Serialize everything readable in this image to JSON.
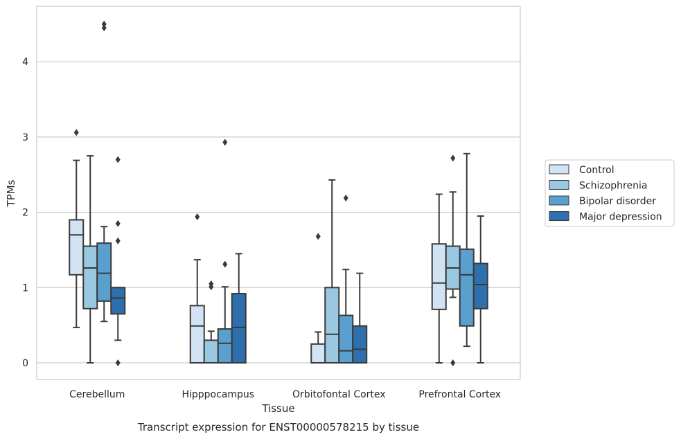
{
  "chart_data": {
    "type": "box",
    "title": "",
    "caption": "Transcript expression for ENST00000578215 by tissue",
    "xlabel": "Tissue",
    "ylabel": "TPMs",
    "ylim": [
      -0.22,
      4.65
    ],
    "yticks": [
      0,
      1,
      2,
      3,
      4
    ],
    "grid": true,
    "legend_position": "right",
    "categories": [
      "Cerebellum",
      "Hipppocampus",
      "Orbitofontal Cortex",
      "Prefrontal Cortex"
    ],
    "series": [
      {
        "name": "Control",
        "color": "#d2e3f3",
        "boxes": [
          {
            "whisker_low": 0.47,
            "q1": 1.17,
            "median": 1.7,
            "q3": 1.9,
            "whisker_high": 2.69,
            "outliers": [
              3.06
            ]
          },
          {
            "whisker_low": 0.0,
            "q1": 0.0,
            "median": 0.49,
            "q3": 0.76,
            "whisker_high": 1.37,
            "outliers": [
              1.94
            ]
          },
          {
            "whisker_low": 0.0,
            "q1": 0.0,
            "median": 0.0,
            "q3": 0.25,
            "whisker_high": 0.41,
            "outliers": [
              1.68
            ]
          },
          {
            "whisker_low": 0.0,
            "q1": 0.71,
            "median": 1.06,
            "q3": 1.58,
            "whisker_high": 2.24,
            "outliers": []
          }
        ]
      },
      {
        "name": "Schizophrenia",
        "color": "#9ac8e0",
        "boxes": [
          {
            "whisker_low": 0.0,
            "q1": 0.72,
            "median": 1.26,
            "q3": 1.55,
            "whisker_high": 2.75,
            "outliers": []
          },
          {
            "whisker_low": 0.0,
            "q1": 0.0,
            "median": 0.0,
            "q3": 0.3,
            "whisker_high": 0.42,
            "outliers": [
              1.01,
              1.05
            ]
          },
          {
            "whisker_low": 0.0,
            "q1": 0.0,
            "median": 0.38,
            "q3": 1.0,
            "whisker_high": 2.43,
            "outliers": []
          },
          {
            "whisker_low": 0.87,
            "q1": 0.98,
            "median": 1.26,
            "q3": 1.55,
            "whisker_high": 2.27,
            "outliers": [
              0.0,
              2.72
            ]
          }
        ]
      },
      {
        "name": "Bipolar disorder",
        "color": "#5a9fcd",
        "boxes": [
          {
            "whisker_low": 0.55,
            "q1": 0.82,
            "median": 1.19,
            "q3": 1.59,
            "whisker_high": 1.81,
            "outliers": [
              4.45,
              4.5
            ]
          },
          {
            "whisker_low": 0.0,
            "q1": 0.0,
            "median": 0.26,
            "q3": 0.45,
            "whisker_high": 1.01,
            "outliers": [
              1.31,
              2.93
            ]
          },
          {
            "whisker_low": 0.0,
            "q1": 0.0,
            "median": 0.16,
            "q3": 0.63,
            "whisker_high": 1.24,
            "outliers": [
              2.19
            ]
          },
          {
            "whisker_low": 0.22,
            "q1": 0.49,
            "median": 1.17,
            "q3": 1.51,
            "whisker_high": 2.78,
            "outliers": []
          }
        ]
      },
      {
        "name": "Major depression",
        "color": "#2e6fad",
        "boxes": [
          {
            "whisker_low": 0.3,
            "q1": 0.65,
            "median": 0.86,
            "q3": 1.0,
            "whisker_high": 1.0,
            "outliers": [
              0.0,
              1.62,
              1.85,
              2.7
            ]
          },
          {
            "whisker_low": 0.0,
            "q1": 0.0,
            "median": 0.47,
            "q3": 0.92,
            "whisker_high": 1.45,
            "outliers": []
          },
          {
            "whisker_low": 0.0,
            "q1": 0.0,
            "median": 0.18,
            "q3": 0.49,
            "whisker_high": 1.19,
            "outliers": []
          },
          {
            "whisker_low": 0.0,
            "q1": 0.72,
            "median": 1.04,
            "q3": 1.32,
            "whisker_high": 1.95,
            "outliers": []
          }
        ]
      }
    ]
  }
}
